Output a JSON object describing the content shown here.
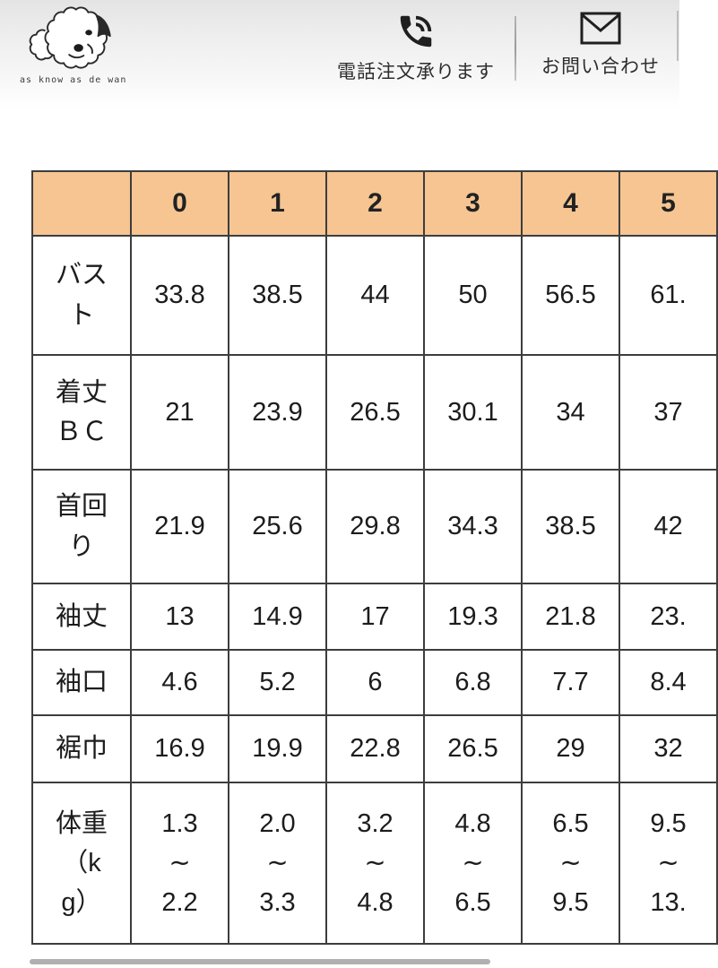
{
  "brand": {
    "logo_text": "as know as de wan",
    "logo_icon": "dog-sketch-icon"
  },
  "header": {
    "phone_order": {
      "label": "電話注文承ります",
      "icon": "phone-in-talk-icon"
    },
    "contact": {
      "label": "お問い合わせ",
      "icon": "mail-icon"
    }
  },
  "size_chart": {
    "corner_label": "",
    "columns": [
      "0",
      "1",
      "2",
      "3",
      "4",
      "5"
    ],
    "rows": [
      {
        "label": "バス\nト",
        "values": [
          "33.8",
          "38.5",
          "44",
          "50",
          "56.5",
          "61."
        ]
      },
      {
        "label": "着丈\nＢＣ",
        "values": [
          "21",
          "23.9",
          "26.5",
          "30.1",
          "34",
          "37"
        ]
      },
      {
        "label": "首回\nり",
        "values": [
          "21.9",
          "25.6",
          "29.8",
          "34.3",
          "38.5",
          "42"
        ]
      },
      {
        "label": "袖丈",
        "values": [
          "13",
          "14.9",
          "17",
          "19.3",
          "21.8",
          "23."
        ]
      },
      {
        "label": "袖口",
        "values": [
          "4.6",
          "5.2",
          "6",
          "6.8",
          "7.7",
          "8.4"
        ]
      },
      {
        "label": "裾巾",
        "values": [
          "16.9",
          "19.9",
          "22.8",
          "26.5",
          "29",
          "32"
        ]
      },
      {
        "label": "体重\n（k\ng）",
        "values": [
          "1.3\n∼\n2.2",
          "2.0\n∼\n3.3",
          "3.2\n∼\n4.8",
          "4.8\n∼\n6.5",
          "6.5\n∼\n9.5",
          "9.5\n∼\n13."
        ]
      }
    ]
  },
  "colors": {
    "header_cell_bg": "#f6c592",
    "table_border": "#3d3d3d",
    "scrollbar_thumb": "#b0b0b0",
    "header_gradient_top": "#e4e4e4",
    "icon_color": "#1f1f1f"
  }
}
